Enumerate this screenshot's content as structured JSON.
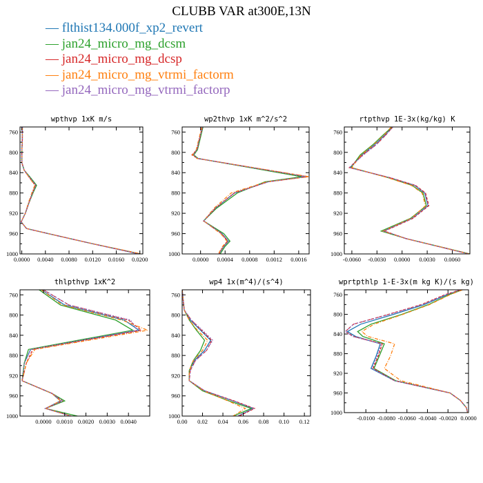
{
  "title": "CLUBB VAR at300E,13N",
  "series": [
    {
      "name": "flthist134.000f_xp2_revert",
      "color": "#1f77b4",
      "dash": ""
    },
    {
      "name": "jan24_micro_mg_dcsm",
      "color": "#2ca02c",
      "dash": ""
    },
    {
      "name": "jan24_micro_mg_dcsp",
      "color": "#d62728",
      "dash": "4,2"
    },
    {
      "name": "jan24_micro_mg_vtrmi_factorm",
      "color": "#ff7f0e",
      "dash": "5,2,1,2"
    },
    {
      "name": "jan24_micro_mg_vtrmi_factorp",
      "color": "#9467bd",
      "dash": "2,2"
    }
  ],
  "chart_data": [
    {
      "type": "line",
      "title": "wpthvp  1xK m/s",
      "ylim": [
        1000,
        750
      ],
      "xlim": [
        -0.0003,
        0.0205
      ],
      "xticks": [
        "0.0000",
        "0.0040",
        "0.0080",
        "0.0120",
        "0.0160",
        "0.0200"
      ],
      "xtick_values": [
        0.0,
        0.004,
        0.008,
        0.012,
        0.016,
        0.02
      ],
      "yticks": [
        760,
        800,
        840,
        880,
        920,
        960,
        1000
      ],
      "levels": [
        750,
        775,
        800,
        820,
        835,
        850,
        865,
        880,
        900,
        920,
        937,
        950,
        960,
        980,
        1000
      ],
      "series": [
        {
          "name": "flthist134.000f_xp2_revert",
          "x": [
            0.0001,
            0.0001,
            0.0,
            0.0,
            0.0004,
            0.0014,
            0.0024,
            0.0018,
            0.0012,
            0.0006,
            -0.0001,
            0.0008,
            0.0045,
            0.012,
            0.0198
          ]
        },
        {
          "name": "jan24_micro_mg_dcsm",
          "x": [
            0.0001,
            0.0001,
            0.0,
            0.0,
            0.0004,
            0.0015,
            0.0025,
            0.0019,
            0.0012,
            0.0006,
            -0.0001,
            0.0008,
            0.0045,
            0.012,
            0.0201
          ]
        },
        {
          "name": "jan24_micro_mg_dcsp",
          "x": [
            0.0001,
            0.0001,
            0.0,
            0.0,
            0.0004,
            0.0013,
            0.0023,
            0.0018,
            0.0012,
            0.0006,
            -0.0001,
            0.0008,
            0.0045,
            0.012,
            0.0199
          ]
        },
        {
          "name": "jan24_micro_mg_vtrmi_factorm",
          "x": [
            0.0001,
            0.0001,
            0.0,
            0.0,
            0.0004,
            0.0013,
            0.0022,
            0.0017,
            0.0011,
            0.0006,
            -0.0001,
            0.0008,
            0.0045,
            0.012,
            0.0203
          ]
        },
        {
          "name": "jan24_micro_mg_vtrmi_factorp",
          "x": [
            0.0001,
            0.0001,
            0.0,
            0.0,
            0.0004,
            0.0014,
            0.0024,
            0.0018,
            0.0012,
            0.0006,
            -0.0001,
            0.0008,
            0.0045,
            0.012,
            0.0199
          ]
        }
      ]
    },
    {
      "type": "line",
      "title": "wp2thvp  1xK m^2/s^2",
      "ylim": [
        1000,
        750
      ],
      "xlim": [
        -0.0003,
        0.00177
      ],
      "xticks": [
        "0.0000",
        "0.0004",
        "0.0008",
        "0.0012",
        "0.0016"
      ],
      "xtick_values": [
        0.0,
        0.0004,
        0.0008,
        0.0012,
        0.0016
      ],
      "yticks": [
        760,
        800,
        840,
        880,
        920,
        960,
        1000
      ],
      "levels": [
        750,
        775,
        795,
        805,
        812,
        848,
        858,
        880,
        910,
        935,
        960,
        975,
        985,
        1000
      ],
      "series": [
        {
          "name": "flthist134.000f_xp2_revert",
          "x": [
            3e-05,
            -2e-05,
            -6e-05,
            -0.00012,
            -5e-05,
            0.0017,
            0.0011,
            0.00055,
            0.00024,
            5e-05,
            0.00035,
            0.00045,
            0.00038,
            0.0003
          ]
        },
        {
          "name": "jan24_micro_mg_dcsm",
          "x": [
            4e-05,
            -1e-05,
            -5e-05,
            -0.00011,
            -4e-05,
            0.00165,
            0.00105,
            0.0006,
            0.00026,
            5e-05,
            0.00038,
            0.00048,
            0.0004,
            0.00032
          ]
        },
        {
          "name": "jan24_micro_mg_dcsp",
          "x": [
            3e-05,
            -2e-05,
            -6e-05,
            -0.00014,
            -5e-05,
            0.00175,
            0.0011,
            0.00055,
            0.00024,
            5e-05,
            0.00034,
            0.00044,
            0.00037,
            0.0003
          ]
        },
        {
          "name": "jan24_micro_mg_vtrmi_factorm",
          "x": [
            2e-05,
            -3e-05,
            -7e-05,
            -0.00013,
            -6e-05,
            0.00177,
            0.00108,
            0.0005,
            0.00022,
            5e-05,
            0.00033,
            0.00043,
            0.00036,
            0.00029
          ]
        },
        {
          "name": "jan24_micro_mg_vtrmi_factorp",
          "x": [
            3e-05,
            -2e-05,
            -6e-05,
            -0.00012,
            -5e-05,
            0.00172,
            0.0011,
            0.00056,
            0.00024,
            5e-05,
            0.00035,
            0.00046,
            0.00038,
            0.0003
          ]
        }
      ]
    },
    {
      "type": "line",
      "title": "rtpthvp  1E-3x(kg/kg) K",
      "ylim": [
        1000,
        750
      ],
      "xlim": [
        -0.0069,
        0.0081
      ],
      "xticks": [
        "-0.0060",
        "-0.0030",
        "0.0000",
        "0.0030",
        "0.0060"
      ],
      "xtick_values": [
        -0.006,
        -0.003,
        0.0,
        0.003,
        0.006
      ],
      "yticks": [
        760,
        800,
        840,
        880,
        920,
        960,
        1000
      ],
      "levels": [
        750,
        765,
        785,
        805,
        830,
        850,
        865,
        880,
        905,
        930,
        955,
        970,
        1000
      ],
      "series": [
        {
          "name": "flthist134.000f_xp2_revert",
          "x": [
            -0.0012,
            -0.002,
            -0.0033,
            -0.0048,
            -0.0062,
            -0.0015,
            0.0015,
            0.0027,
            0.0031,
            0.0012,
            -0.0022,
            0.0005,
            0.008
          ]
        },
        {
          "name": "jan24_micro_mg_dcsm",
          "x": [
            -0.0012,
            -0.0022,
            -0.0035,
            -0.005,
            -0.0061,
            -0.0016,
            0.0012,
            0.0025,
            0.0029,
            0.001,
            -0.0025,
            0.0005,
            0.0081
          ]
        },
        {
          "name": "jan24_micro_mg_dcsp",
          "x": [
            -0.0011,
            -0.0019,
            -0.0031,
            -0.0047,
            -0.0063,
            -0.0014,
            0.0016,
            0.0028,
            0.0032,
            0.0013,
            -0.0021,
            0.0005,
            0.008
          ]
        },
        {
          "name": "jan24_micro_mg_vtrmi_factorm",
          "x": [
            -0.0013,
            -0.0021,
            -0.0034,
            -0.0049,
            -0.006,
            -0.0017,
            0.0011,
            0.0024,
            0.0028,
            0.0011,
            -0.0023,
            0.0005,
            0.008
          ]
        },
        {
          "name": "jan24_micro_mg_vtrmi_factorp",
          "x": [
            -0.0011,
            -0.0019,
            -0.0031,
            -0.0046,
            -0.0063,
            -0.0014,
            0.0015,
            0.0027,
            0.0031,
            0.0012,
            -0.0022,
            0.0005,
            0.0079
          ]
        }
      ]
    },
    {
      "type": "line",
      "title": "thlpthvp  1xK^2",
      "ylim": [
        1000,
        750
      ],
      "xlim": [
        -0.0011,
        0.005
      ],
      "xticks": [
        "0.0000",
        "0.0010",
        "0.0020",
        "0.0030",
        "0.0040"
      ],
      "xtick_values": [
        0.0,
        0.001,
        0.002,
        0.003,
        0.004
      ],
      "yticks": [
        760,
        800,
        840,
        880,
        920,
        960,
        1000
      ],
      "levels": [
        750,
        780,
        810,
        830,
        868,
        895,
        930,
        955,
        970,
        985,
        1000
      ],
      "series": [
        {
          "name": "flthist134.000f_xp2_revert",
          "x": [
            -0.0001,
            0.001,
            0.0038,
            0.0045,
            -0.0006,
            -0.0009,
            -0.001,
            0.0004,
            0.0008,
            0.0001,
            0.0013
          ]
        },
        {
          "name": "jan24_micro_mg_dcsm",
          "x": [
            -0.0002,
            0.0008,
            0.0034,
            0.0042,
            -0.0007,
            -0.0009,
            -0.001,
            0.0004,
            0.001,
            0.0001,
            0.0016
          ]
        },
        {
          "name": "jan24_micro_mg_dcsp",
          "x": [
            0.0,
            0.0012,
            0.004,
            0.0046,
            -0.0005,
            -0.0008,
            -0.001,
            0.0004,
            0.0009,
            0.0001,
            0.0013
          ]
        },
        {
          "name": "jan24_micro_mg_vtrmi_factorm",
          "x": [
            -0.0001,
            0.0009,
            0.0037,
            0.0049,
            -0.0004,
            -0.0008,
            -0.001,
            0.0004,
            0.0008,
            0.0001,
            0.0013
          ]
        },
        {
          "name": "jan24_micro_mg_vtrmi_factorp",
          "x": [
            0.0,
            0.0012,
            0.0041,
            0.0044,
            -0.0006,
            -0.0009,
            -0.001,
            0.0004,
            0.0009,
            0.0001,
            0.0013
          ]
        }
      ]
    },
    {
      "type": "line",
      "title": "wp4  1x(m^4)/(s^4)",
      "ylim": [
        1000,
        750
      ],
      "xlim": [
        0.0,
        0.126
      ],
      "xticks": [
        "0.00",
        "0.02",
        "0.04",
        "0.06",
        "0.08",
        "0.10",
        "0.12"
      ],
      "xtick_values": [
        0.0,
        0.02,
        0.04,
        0.06,
        0.08,
        0.1,
        0.12
      ],
      "yticks": [
        760,
        800,
        840,
        880,
        920,
        960,
        1000
      ],
      "levels": [
        750,
        790,
        810,
        830,
        850,
        870,
        890,
        910,
        930,
        950,
        970,
        985,
        1000
      ],
      "series": [
        {
          "name": "flthist134.000f_xp2_revert",
          "x": [
            0.0,
            0.002,
            0.008,
            0.018,
            0.028,
            0.022,
            0.012,
            0.007,
            0.007,
            0.022,
            0.05,
            0.07,
            0.055
          ]
        },
        {
          "name": "jan24_micro_mg_dcsm",
          "x": [
            0.0,
            0.002,
            0.007,
            0.014,
            0.022,
            0.018,
            0.011,
            0.007,
            0.007,
            0.02,
            0.046,
            0.068,
            0.05
          ]
        },
        {
          "name": "jan24_micro_mg_dcsp",
          "x": [
            0.0,
            0.002,
            0.009,
            0.019,
            0.029,
            0.024,
            0.013,
            0.008,
            0.007,
            0.022,
            0.051,
            0.071,
            0.056
          ]
        },
        {
          "name": "jan24_micro_mg_vtrmi_factorm",
          "x": [
            0.0,
            0.002,
            0.007,
            0.015,
            0.025,
            0.02,
            0.011,
            0.007,
            0.007,
            0.021,
            0.045,
            0.062,
            0.05
          ]
        },
        {
          "name": "jan24_micro_mg_vtrmi_factorp",
          "x": [
            0.0,
            0.002,
            0.009,
            0.02,
            0.03,
            0.024,
            0.013,
            0.008,
            0.007,
            0.022,
            0.05,
            0.07,
            0.054
          ]
        }
      ]
    },
    {
      "type": "line",
      "title": "wprtpthlp  1-E-3x(m kg K)/(s kg)",
      "ylim": [
        1000,
        750
      ],
      "xlim": [
        -0.0121,
        0.0
      ],
      "xticks": [
        "-0.0100",
        "-0.0080",
        "-0.0060",
        "-0.0040",
        "-0.0020",
        "0.0000"
      ],
      "xtick_values": [
        -0.01,
        -0.008,
        -0.006,
        -0.004,
        -0.002,
        0.0
      ],
      "yticks": [
        760,
        800,
        840,
        880,
        920,
        960,
        1000
      ],
      "levels": [
        750,
        760,
        780,
        800,
        820,
        835,
        845,
        860,
        885,
        910,
        935,
        960,
        975,
        990,
        1000
      ],
      "series": [
        {
          "name": "flthist134.000f_xp2_revert",
          "x": [
            -0.0007,
            -0.0021,
            -0.0043,
            -0.0073,
            -0.0105,
            -0.0118,
            -0.011,
            -0.0086,
            -0.009,
            -0.0095,
            -0.0072,
            -0.0018,
            -0.0008,
            -0.0002,
            -0.0001
          ]
        },
        {
          "name": "jan24_micro_mg_dcsm",
          "x": [
            -0.0006,
            -0.0019,
            -0.0039,
            -0.0065,
            -0.0095,
            -0.0108,
            -0.0103,
            -0.0082,
            -0.0087,
            -0.0092,
            -0.0071,
            -0.0018,
            -0.0008,
            -0.0002,
            -0.0001
          ]
        },
        {
          "name": "jan24_micro_mg_dcsp",
          "x": [
            -0.0008,
            -0.0023,
            -0.0046,
            -0.0078,
            -0.0112,
            -0.012,
            -0.0112,
            -0.0084,
            -0.0088,
            -0.0093,
            -0.0072,
            -0.0018,
            -0.0008,
            -0.0002,
            -0.0001
          ]
        },
        {
          "name": "jan24_micro_mg_vtrmi_factorm",
          "x": [
            -0.0006,
            -0.0018,
            -0.0038,
            -0.0064,
            -0.0092,
            -0.0104,
            -0.0098,
            -0.0072,
            -0.0076,
            -0.0082,
            -0.0066,
            -0.0018,
            -0.0008,
            -0.0002,
            -0.0001
          ]
        },
        {
          "name": "jan24_micro_mg_vtrmi_factorp",
          "x": [
            -0.0008,
            -0.0022,
            -0.0045,
            -0.0077,
            -0.0112,
            -0.012,
            -0.0113,
            -0.0085,
            -0.0089,
            -0.0094,
            -0.0072,
            -0.0018,
            -0.0008,
            -0.0002,
            -0.0001
          ]
        }
      ]
    }
  ]
}
